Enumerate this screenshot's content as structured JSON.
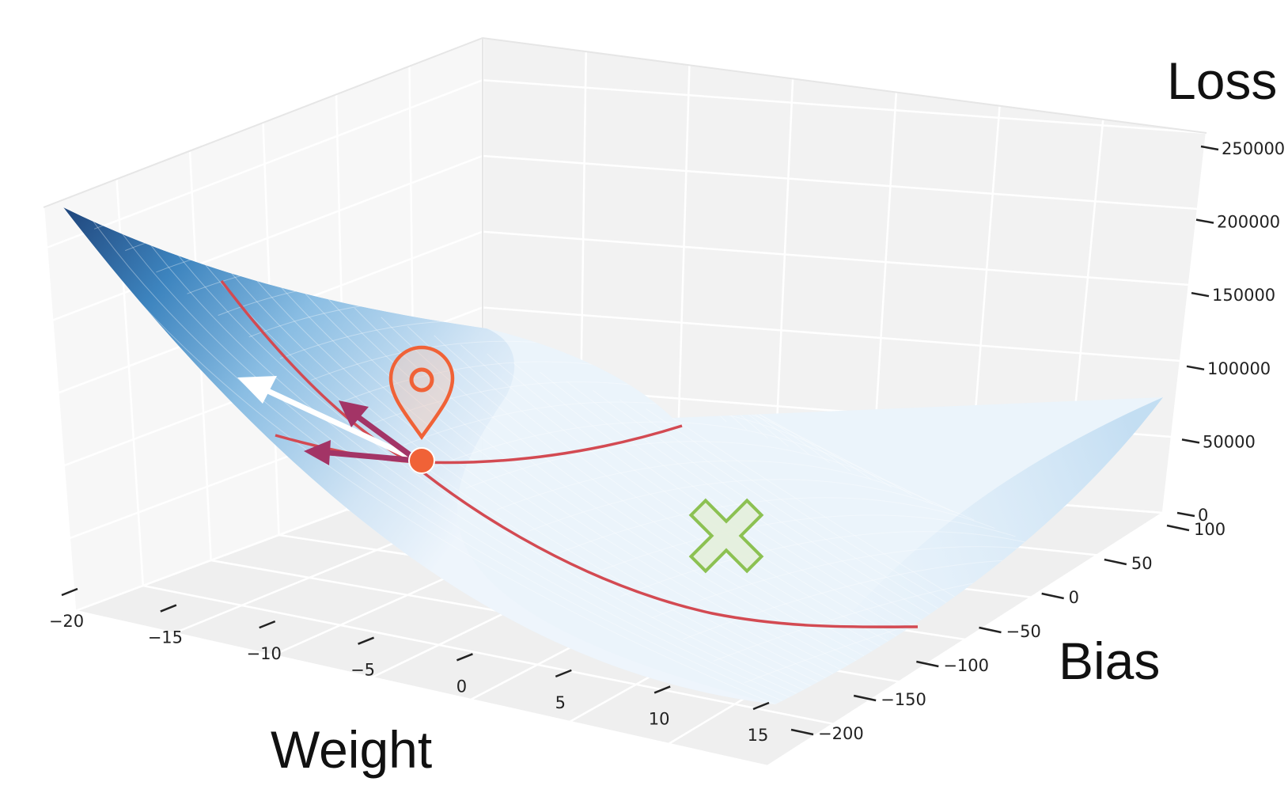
{
  "chart_data": {
    "type": "surface",
    "x_axis": {
      "label": "Weight",
      "range": [
        -20,
        15
      ],
      "ticks": [
        -20,
        -15,
        -10,
        -5,
        0,
        5,
        10,
        15
      ],
      "tick_labels": [
        "−20",
        "−15",
        "−10",
        "−5",
        "0",
        "5",
        "10",
        "15"
      ]
    },
    "y_axis": {
      "label": "Bias",
      "range": [
        -200,
        100
      ],
      "ticks": [
        -200,
        -150,
        -100,
        -50,
        0,
        50,
        100
      ],
      "tick_labels": [
        "−200",
        "−150",
        "−100",
        "−50",
        "0",
        "50",
        "100"
      ]
    },
    "z_axis": {
      "label": "Loss",
      "range": [
        0,
        250000
      ],
      "ticks": [
        0,
        50000,
        100000,
        150000,
        200000,
        250000
      ],
      "tick_labels": [
        "0",
        "50000",
        "100000",
        "150000",
        "200000",
        "250000"
      ]
    },
    "grid": true,
    "colormap": [
      "#f4f9ff",
      "#d6e7f6",
      "#9dcae8",
      "#4a98c9",
      "#1b63a8",
      "#08306b"
    ],
    "markers": [
      {
        "kind": "current-position",
        "icon": "map-pin",
        "color": "#f06237"
      },
      {
        "kind": "minimum",
        "icon": "x-mark",
        "color": "#8cc152"
      }
    ],
    "overlays": [
      {
        "kind": "cross-section-curve",
        "along": "Weight",
        "color": "#d34a52"
      },
      {
        "kind": "cross-section-curve",
        "along": "Bias",
        "color": "#d34a52"
      },
      {
        "kind": "partial-gradient-arrow",
        "color": "#a33466"
      },
      {
        "kind": "partial-gradient-arrow",
        "color": "#a33466"
      },
      {
        "kind": "gradient-arrow",
        "color": "#ffffff"
      }
    ]
  }
}
